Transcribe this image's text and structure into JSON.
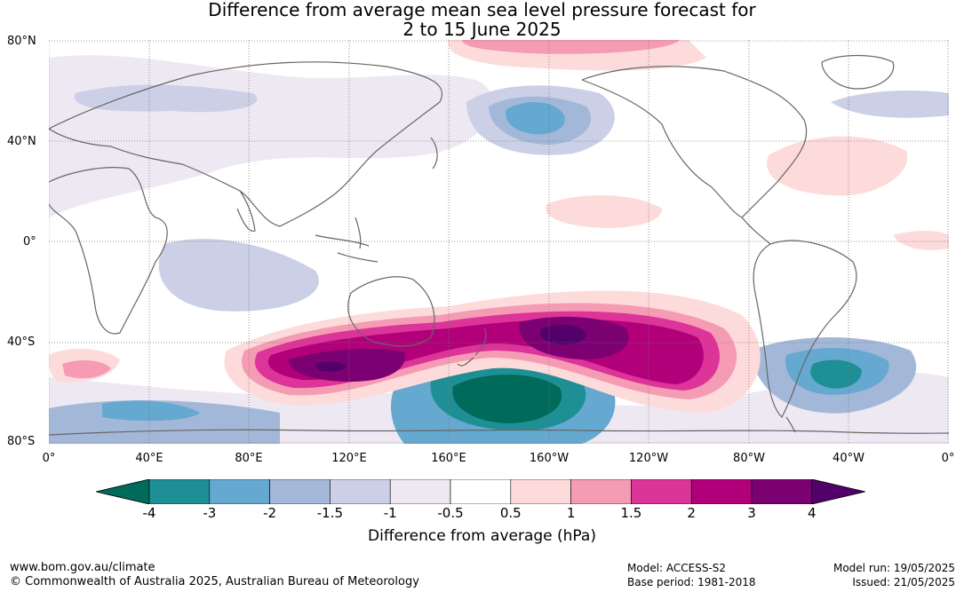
{
  "title_line1": "Difference from average mean sea level pressure forecast for",
  "title_line2": "2 to 15 June 2025",
  "lat_labels": [
    "80°N",
    "40°N",
    "0°",
    "40°S",
    "80°S"
  ],
  "lon_labels": [
    "0°",
    "40°E",
    "80°E",
    "120°E",
    "160°E",
    "160°W",
    "120°W",
    "80°W",
    "40°W",
    "0°"
  ],
  "colorbar": {
    "ticks": [
      "-4",
      "-3",
      "-2",
      "-1.5",
      "-1",
      "-0.5",
      "0.5",
      "1",
      "1.5",
      "2",
      "3",
      "4"
    ],
    "colors": [
      "#006a5b",
      "#1e8f95",
      "#65a8d0",
      "#a3b8d8",
      "#ccd0e6",
      "#eee8f3",
      "#ffffff",
      "#fddbdb",
      "#f59cb4",
      "#dc3498",
      "#b1007a",
      "#7b0072",
      "#52006a"
    ],
    "label": "Difference from average (hPa)"
  },
  "footer": {
    "url": "www.bom.gov.au/climate",
    "copyright": "© Commonwealth of Australia 2025, Australian Bureau of Meteorology",
    "model": "Model: ACCESS-S2",
    "base_period": "Base period: 1981-2018",
    "model_run": "Model run: 19/05/2025",
    "issued": "Issued: 21/05/2025"
  }
}
